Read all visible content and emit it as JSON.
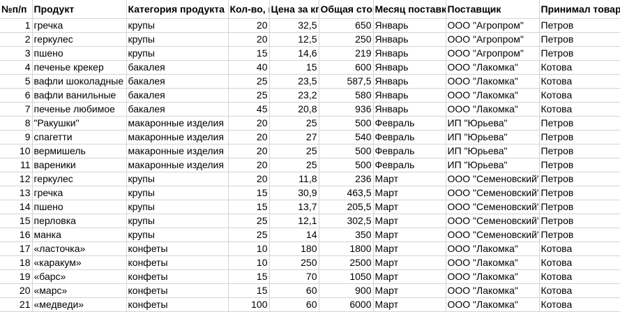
{
  "sheet": {
    "columns": [
      "№п/п",
      "Продукт",
      "Категория продукта",
      "Кол-во, к",
      "Цена за кг,",
      "Общая стои",
      "Месяц поставки",
      "Поставщик",
      "Принимал товар"
    ],
    "rows": [
      [
        "1",
        "гречка",
        "крупы",
        "20",
        "32,5",
        "650",
        "Январь",
        "ООО \"Агропром\"",
        "Петров"
      ],
      [
        "2",
        "геркулес",
        "крупы",
        "20",
        "12,5",
        "250",
        "Январь",
        "ООО \"Агропром\"",
        "Петров"
      ],
      [
        "3",
        "пшено",
        "крупы",
        "15",
        "14,6",
        "219",
        "Январь",
        "ООО \"Агропром\"",
        "Петров"
      ],
      [
        "4",
        "печенье крекер",
        "бакалея",
        "40",
        "15",
        "600",
        "Январь",
        "ООО \"Лакомка\"",
        "Котова"
      ],
      [
        "5",
        "вафли шоколадные",
        "бакалея",
        "25",
        "23,5",
        "587,5",
        "Январь",
        "ООО \"Лакомка\"",
        "Котова"
      ],
      [
        "6",
        "вафли ванильные",
        "бакалея",
        "25",
        "23,2",
        "580",
        "Январь",
        "ООО \"Лакомка\"",
        "Котова"
      ],
      [
        "7",
        "печенье любимое",
        "бакалея",
        "45",
        "20,8",
        "936",
        "Январь",
        "ООО \"Лакомка\"",
        "Котова"
      ],
      [
        "8",
        "\"Ракушки\"",
        "макаронные изделия",
        "20",
        "25",
        "500",
        "Февраль",
        "ИП \"Юрьева\"",
        "Петров"
      ],
      [
        "9",
        "спагетти",
        "макаронные изделия",
        "20",
        "27",
        "540",
        "Февраль",
        "ИП \"Юрьева\"",
        "Петров"
      ],
      [
        "10",
        "вермишель",
        "макаронные изделия",
        "20",
        "25",
        "500",
        "Февраль",
        "ИП \"Юрьева\"",
        "Петров"
      ],
      [
        "11",
        "вареники",
        "макаронные изделия",
        "20",
        "25",
        "500",
        "Февраль",
        "ИП \"Юрьева\"",
        "Петров"
      ],
      [
        "12",
        "геркулес",
        "крупы",
        "20",
        "11,8",
        "236",
        "Март",
        "ООО \"Семеновский\"",
        "Петров"
      ],
      [
        "13",
        "гречка",
        "крупы",
        "15",
        "30,9",
        "463,5",
        "Март",
        "ООО \"Семеновский\"",
        "Петров"
      ],
      [
        "14",
        "пшено",
        "крупы",
        "15",
        "13,7",
        "205,5",
        "Март",
        "ООО \"Семеновский\"",
        "Петров"
      ],
      [
        "15",
        "перловка",
        "крупы",
        "25",
        "12,1",
        "302,5",
        "Март",
        "ООО \"Семеновский\"",
        "Петров"
      ],
      [
        "16",
        "манка",
        "крупы",
        "25",
        "14",
        "350",
        "Март",
        "ООО \"Семеновский\"",
        "Петров"
      ],
      [
        "17",
        "«ласточка»",
        "конфеты",
        "10",
        "180",
        "1800",
        "Март",
        "ООО \"Лакомка\"",
        "Котова"
      ],
      [
        "18",
        "«каракум»",
        "конфеты",
        "10",
        "250",
        "2500",
        "Март",
        "ООО \"Лакомка\"",
        "Котова"
      ],
      [
        "19",
        "«барс»",
        "конфеты",
        "15",
        "70",
        "1050",
        "Март",
        "ООО \"Лакомка\"",
        "Котова"
      ],
      [
        "20",
        "«марс»",
        "конфеты",
        "15",
        "60",
        "900",
        "Март",
        "ООО \"Лакомка\"",
        "Котова"
      ],
      [
        "21",
        "«медведи»",
        "конфеты",
        "100",
        "60",
        "6000",
        "Март",
        "ООО \"Лакомка\"",
        "Котова"
      ]
    ]
  }
}
